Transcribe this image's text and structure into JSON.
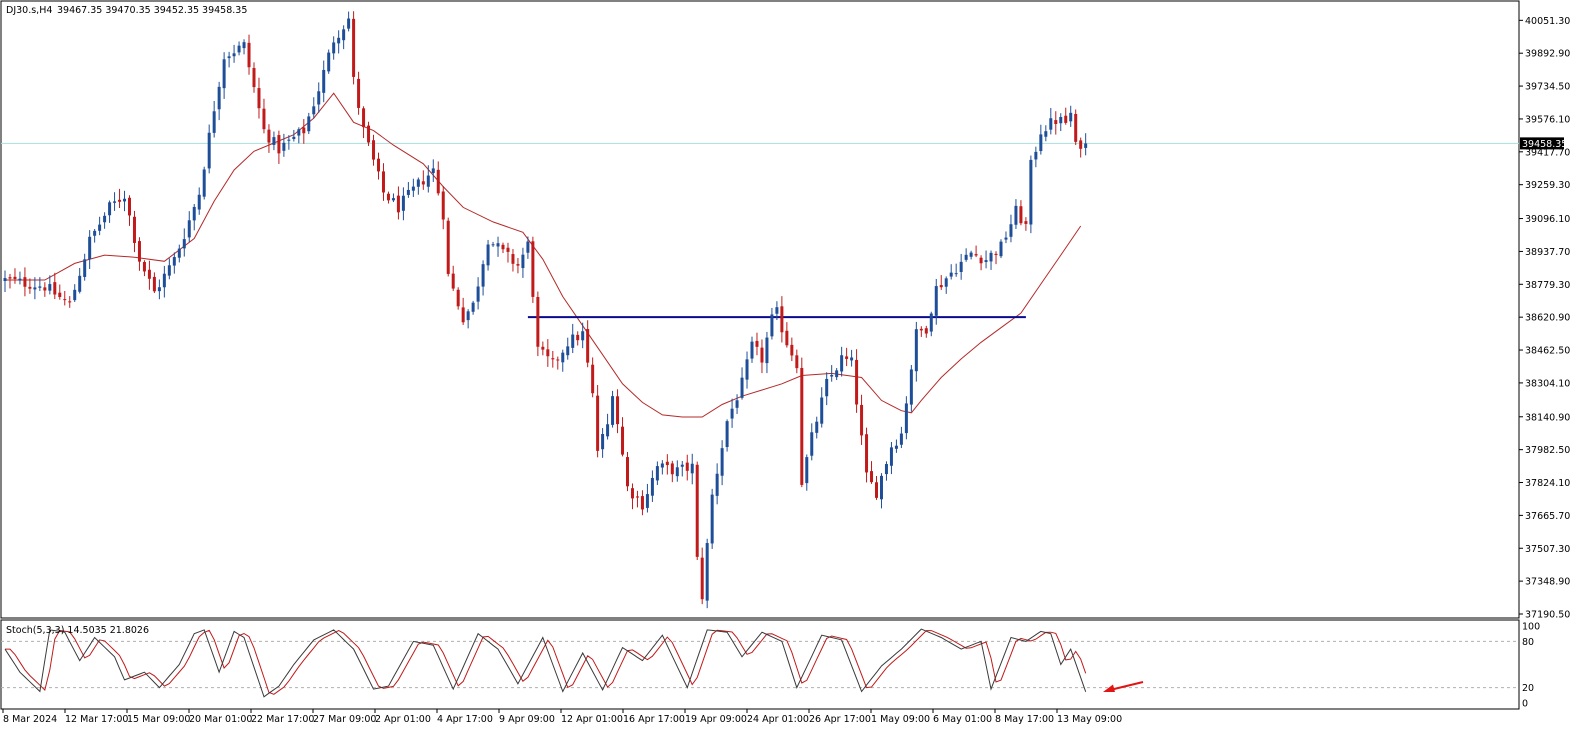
{
  "header": {
    "symbol_timeframe": "DJ30.s,H4",
    "ohlc": "39467.35 39470.35 39452.35 39458.35"
  },
  "colors": {
    "bull": "#1f4e99",
    "bear": "#c11a1a",
    "ma": "#b42a2a",
    "level": "#0a0a8c",
    "price_line": "#a9dede",
    "stoch_main": "#3a3a3a",
    "stoch_signal": "#c11a1a",
    "arrow": "#e21515"
  },
  "indicator": {
    "label": "Stoch(5,3,3) 14.5035 21.8026",
    "levels": [
      "100",
      "80",
      "20",
      "0"
    ],
    "annotation_arrow": "red arrow pointing left at oversold Stochastic reading"
  },
  "chart_data": {
    "type": "candlestick",
    "symbol": "DJ30.s",
    "timeframe": "H4",
    "ylim": [
      37190.5,
      40130
    ],
    "y_ticks": [
      "40051.30",
      "39892.90",
      "39734.50",
      "39576.10",
      "39417.70",
      "39259.30",
      "39096.10",
      "38937.70",
      "38779.30",
      "38620.90",
      "38462.50",
      "38304.10",
      "38140.90",
      "37982.50",
      "37824.10",
      "37665.70",
      "37507.30",
      "37348.90",
      "37190.50"
    ],
    "x_ticks": [
      "8 Mar 2024",
      "12 Mar 17:00",
      "15 Mar 09:00",
      "20 Mar 01:00",
      "22 Mar 17:00",
      "27 Mar 09:00",
      "2 Apr 01:00",
      "4 Apr 17:00",
      "9 Apr 09:00",
      "12 Apr 01:00",
      "16 Apr 17:00",
      "19 Apr 09:00",
      "24 Apr 01:00",
      "26 Apr 17:00",
      "1 May 09:00",
      "6 May 01:00",
      "8 May 17:00",
      "13 May 09:00"
    ],
    "current_price": "39458.35",
    "horizontal_level": {
      "price": 38620.9
    },
    "close_anchors": [
      [
        0,
        38800
      ],
      [
        8,
        38770
      ],
      [
        13,
        38680
      ],
      [
        17,
        38990
      ],
      [
        21,
        39150
      ],
      [
        24,
        39210
      ],
      [
        27,
        38900
      ],
      [
        30,
        38740
      ],
      [
        34,
        38900
      ],
      [
        36,
        39020
      ],
      [
        39,
        39220
      ],
      [
        42,
        39630
      ],
      [
        44,
        39880
      ],
      [
        48,
        39930
      ],
      [
        52,
        39520
      ],
      [
        55,
        39430
      ],
      [
        60,
        39520
      ],
      [
        63,
        39720
      ],
      [
        66,
        39960
      ],
      [
        69,
        40060
      ],
      [
        70,
        39760
      ],
      [
        72,
        39520
      ],
      [
        76,
        39220
      ],
      [
        79,
        39150
      ],
      [
        83,
        39260
      ],
      [
        86,
        39330
      ],
      [
        88,
        39120
      ],
      [
        89,
        38820
      ],
      [
        92,
        38620
      ],
      [
        94,
        38680
      ],
      [
        97,
        39000
      ],
      [
        100,
        38930
      ],
      [
        103,
        38870
      ],
      [
        105,
        38970
      ],
      [
        106,
        38740
      ],
      [
        107,
        38460
      ],
      [
        110,
        38390
      ],
      [
        113,
        38500
      ],
      [
        116,
        38540
      ],
      [
        118,
        38240
      ],
      [
        119,
        37980
      ],
      [
        121,
        38100
      ],
      [
        122,
        38270
      ],
      [
        125,
        37800
      ],
      [
        128,
        37720
      ],
      [
        131,
        37900
      ],
      [
        135,
        37880
      ],
      [
        138,
        37900
      ],
      [
        139,
        37450
      ],
      [
        140,
        37280
      ],
      [
        142,
        37760
      ],
      [
        145,
        38120
      ],
      [
        148,
        38300
      ],
      [
        150,
        38480
      ],
      [
        152,
        38420
      ],
      [
        154,
        38610
      ],
      [
        155,
        38640
      ],
      [
        157,
        38500
      ],
      [
        159,
        38400
      ],
      [
        160,
        37830
      ],
      [
        162,
        38040
      ],
      [
        165,
        38300
      ],
      [
        168,
        38420
      ],
      [
        170,
        38400
      ],
      [
        173,
        37850
      ],
      [
        175,
        37780
      ],
      [
        178,
        38000
      ],
      [
        180,
        38060
      ],
      [
        183,
        38540
      ],
      [
        185,
        38570
      ],
      [
        187,
        38760
      ],
      [
        191,
        38860
      ],
      [
        194,
        38930
      ],
      [
        197,
        38900
      ],
      [
        200,
        38960
      ],
      [
        203,
        39130
      ],
      [
        205,
        39060
      ],
      [
        206,
        39350
      ],
      [
        208,
        39520
      ],
      [
        211,
        39570
      ],
      [
        213,
        39560
      ],
      [
        214,
        39600
      ],
      [
        215,
        39440
      ],
      [
        216,
        39460
      ],
      [
        217,
        39458
      ]
    ],
    "moving_average": {
      "period_label": "",
      "points": [
        [
          0,
          38800
        ],
        [
          8,
          38800
        ],
        [
          14,
          38880
        ],
        [
          20,
          38920
        ],
        [
          26,
          38910
        ],
        [
          32,
          38890
        ],
        [
          38,
          39000
        ],
        [
          42,
          39180
        ],
        [
          46,
          39330
        ],
        [
          50,
          39420
        ],
        [
          54,
          39460
        ],
        [
          58,
          39500
        ],
        [
          62,
          39580
        ],
        [
          66,
          39700
        ],
        [
          70,
          39560
        ],
        [
          74,
          39520
        ],
        [
          78,
          39450
        ],
        [
          84,
          39360
        ],
        [
          88,
          39250
        ],
        [
          92,
          39150
        ],
        [
          98,
          39080
        ],
        [
          104,
          39030
        ],
        [
          108,
          38900
        ],
        [
          112,
          38720
        ],
        [
          116,
          38580
        ],
        [
          120,
          38440
        ],
        [
          124,
          38300
        ],
        [
          128,
          38210
        ],
        [
          132,
          38150
        ],
        [
          136,
          38140
        ],
        [
          140,
          38140
        ],
        [
          144,
          38200
        ],
        [
          148,
          38240
        ],
        [
          152,
          38270
        ],
        [
          156,
          38300
        ],
        [
          160,
          38340
        ],
        [
          166,
          38350
        ],
        [
          172,
          38330
        ],
        [
          176,
          38220
        ],
        [
          180,
          38170
        ],
        [
          182,
          38160
        ],
        [
          184,
          38220
        ],
        [
          188,
          38330
        ],
        [
          192,
          38420
        ],
        [
          196,
          38500
        ],
        [
          200,
          38570
        ],
        [
          204,
          38640
        ],
        [
          208,
          38780
        ],
        [
          212,
          38920
        ],
        [
          216,
          39060
        ]
      ]
    },
    "stochastic": {
      "k_period": 5,
      "d_period": 3,
      "slowing": 3,
      "main": 14.5035,
      "signal": 21.8026,
      "turning_points": [
        [
          0,
          70
        ],
        [
          3,
          40
        ],
        [
          7,
          15
        ],
        [
          9,
          95
        ],
        [
          12,
          92
        ],
        [
          15,
          55
        ],
        [
          18,
          85
        ],
        [
          22,
          60
        ],
        [
          24,
          30
        ],
        [
          28,
          40
        ],
        [
          31,
          20
        ],
        [
          35,
          50
        ],
        [
          38,
          90
        ],
        [
          40,
          95
        ],
        [
          43,
          40
        ],
        [
          46,
          93
        ],
        [
          48,
          85
        ],
        [
          52,
          8
        ],
        [
          55,
          22
        ],
        [
          58,
          50
        ],
        [
          62,
          82
        ],
        [
          66,
          95
        ],
        [
          70,
          70
        ],
        [
          74,
          18
        ],
        [
          77,
          22
        ],
        [
          82,
          80
        ],
        [
          86,
          75
        ],
        [
          90,
          18
        ],
        [
          95,
          90
        ],
        [
          99,
          70
        ],
        [
          103,
          25
        ],
        [
          108,
          85
        ],
        [
          112,
          15
        ],
        [
          116,
          65
        ],
        [
          120,
          17
        ],
        [
          124,
          72
        ],
        [
          128,
          55
        ],
        [
          132,
          88
        ],
        [
          137,
          20
        ],
        [
          141,
          95
        ],
        [
          145,
          92
        ],
        [
          148,
          60
        ],
        [
          152,
          92
        ],
        [
          156,
          80
        ],
        [
          159,
          20
        ],
        [
          164,
          88
        ],
        [
          168,
          82
        ],
        [
          172,
          15
        ],
        [
          176,
          48
        ],
        [
          180,
          70
        ],
        [
          184,
          96
        ],
        [
          188,
          85
        ],
        [
          192,
          70
        ],
        [
          196,
          80
        ],
        [
          198,
          18
        ],
        [
          202,
          85
        ],
        [
          205,
          80
        ],
        [
          208,
          93
        ],
        [
          210,
          90
        ],
        [
          212,
          50
        ],
        [
          214,
          70
        ],
        [
          217,
          14.5
        ]
      ]
    }
  }
}
